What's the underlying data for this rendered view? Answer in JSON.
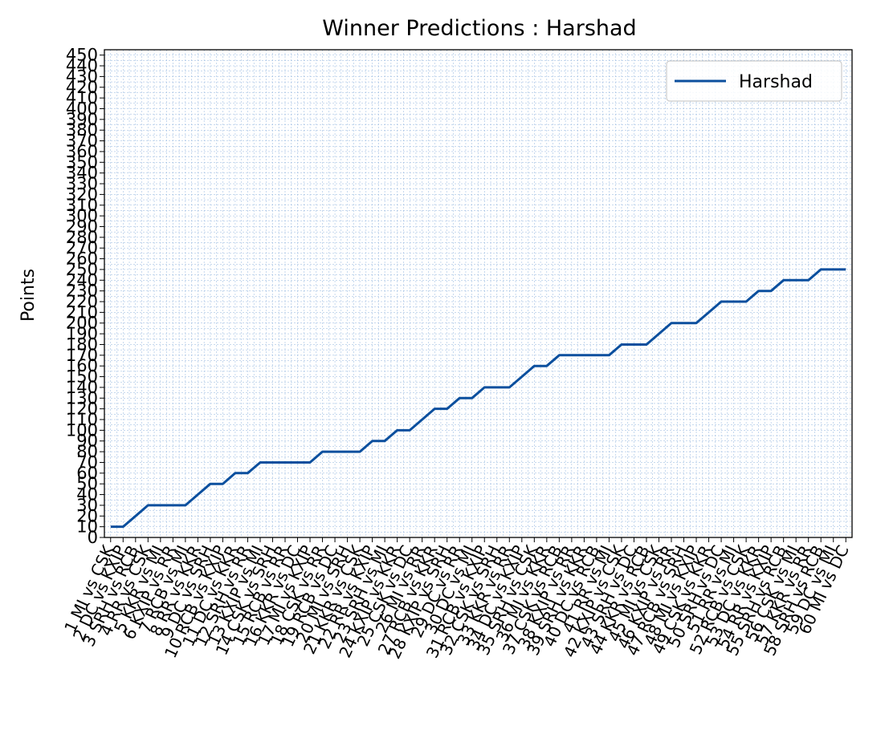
{
  "chart_data": {
    "type": "line",
    "title": "Winner Predictions : Harshad",
    "xlabel": "",
    "ylabel": "Points",
    "ylim": [
      0,
      455
    ],
    "yticks": [
      0,
      10,
      20,
      30,
      40,
      50,
      60,
      70,
      80,
      90,
      100,
      110,
      120,
      130,
      140,
      150,
      160,
      170,
      180,
      190,
      200,
      210,
      220,
      230,
      240,
      250,
      260,
      270,
      280,
      290,
      300,
      310,
      320,
      330,
      340,
      350,
      360,
      370,
      380,
      390,
      400,
      410,
      420,
      430,
      440,
      450
    ],
    "grid": true,
    "legend_position": "top-right",
    "categories": [
      "1 MI vs CSK",
      "2 DC vs KXIP",
      "3 SRH vs RCB",
      "4 RR vs CSK",
      "5 KKR vs MI",
      "6 KXIP vs RR",
      "7 RCB vs MI",
      "8 RR vs KKR",
      "9 DC vs SRH",
      "10 RCB vs KXIP",
      "11 DC vs KKR",
      "12 SRH vs RR",
      "13 KXIP vs MI",
      "14 CSK vs SRH",
      "15 RCB vs RR",
      "16 KKR vs DC",
      "17 MI vs KXIP",
      "18 CSK vs RR",
      "19 RCB vs DC",
      "20 MI vs SRH",
      "21 KKR vs CSK",
      "22 RR vs KXIP",
      "23 SRH vs MI",
      "24 KXIP vs KKR",
      "25 CSK vs DC",
      "26 MI vs RR",
      "27 RCB vs KKR",
      "28 KXIP vs SRH",
      "29 DC vs RR",
      "30 DC vs MI",
      "31 RCB vs KXIP",
      "32 CSK vs SRH",
      "33 KKR vs RR",
      "34 DC vs KXIP",
      "35 SRH vs CSK",
      "36 MI vs KKR",
      "37 CSK vs RCB",
      "38 KXIP vs RR",
      "39 SRH vs KKR",
      "40 DC vs RCB",
      "41 RR vs MI",
      "42 KXIP vs CSK",
      "43 SRH vs DC",
      "44 KKR vs RCB",
      "45 MI vs CSK",
      "46 KXIP vs RR",
      "47 RCB vs SRH",
      "48 MI vs KXIP",
      "49 CSK vs KKR",
      "50 SRH vs DC",
      "51 RR vs MI",
      "52 RCB vs CSK",
      "53 DC vs KKR",
      "54 RR vs KXIP",
      "55 SRH vs RCB",
      "56 CSK vs MI",
      "57 KKR vs RR",
      "58 SRH vs RCB",
      "59 DC vs MI",
      "60 MI vs DC"
    ],
    "series": [
      {
        "name": "Harshad",
        "color": "#0b4f9e",
        "values": [
          10,
          10,
          20,
          30,
          30,
          30,
          30,
          40,
          50,
          50,
          60,
          60,
          70,
          70,
          70,
          70,
          70,
          80,
          80,
          80,
          80,
          90,
          90,
          100,
          100,
          110,
          120,
          120,
          130,
          130,
          140,
          140,
          140,
          150,
          160,
          160,
          170,
          170,
          170,
          170,
          170,
          180,
          180,
          180,
          190,
          200,
          200,
          200,
          210,
          220,
          220,
          220,
          230,
          230,
          240,
          240,
          240,
          250,
          250,
          250
        ]
      }
    ]
  }
}
